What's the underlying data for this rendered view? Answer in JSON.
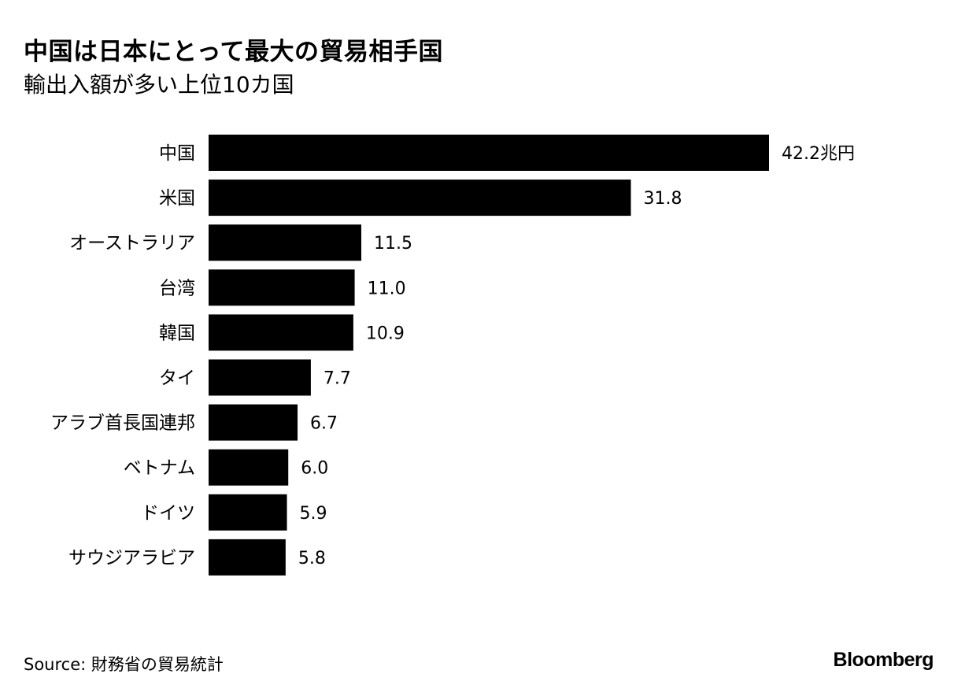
{
  "chart_data": {
    "type": "bar",
    "orientation": "horizontal",
    "title": "中国は日本にとって最大の貿易相手国",
    "subtitle": "輸出入額が多い上位10カ国",
    "unit": "兆円",
    "categories": [
      "中国",
      "米国",
      "オーストラリア",
      "台湾",
      "韓国",
      "タイ",
      "アラブ首長国連邦",
      "ベトナム",
      "ドイツ",
      "サウジアラビア"
    ],
    "values": [
      42.2,
      31.8,
      11.5,
      11.0,
      10.9,
      7.7,
      6.7,
      6.0,
      5.9,
      5.8
    ],
    "value_labels": [
      "42.2",
      "31.8",
      "11.5",
      "11.0",
      "10.9",
      "7.7",
      "6.7",
      "6.0",
      "5.9",
      "5.8"
    ],
    "bar_color": "#000000",
    "grid": false,
    "legend": "none"
  },
  "footer": {
    "source": "Source: 財務省の貿易統計",
    "brand": "Bloomberg"
  }
}
